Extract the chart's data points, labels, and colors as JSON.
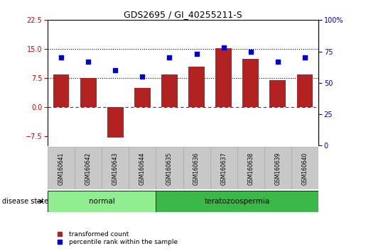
{
  "title": "GDS2695 / GI_40255211-S",
  "samples": [
    "GSM160641",
    "GSM160642",
    "GSM160643",
    "GSM160644",
    "GSM160635",
    "GSM160636",
    "GSM160637",
    "GSM160638",
    "GSM160639",
    "GSM160640"
  ],
  "bar_values": [
    8.5,
    7.5,
    -8.0,
    5.0,
    8.5,
    10.5,
    15.2,
    12.5,
    7.0,
    8.5
  ],
  "dot_values": [
    70,
    67,
    60,
    55,
    70,
    73,
    78,
    75,
    67,
    70
  ],
  "bar_color": "#B22222",
  "dot_color": "#0000CC",
  "ylim_left": [
    -10,
    22.5
  ],
  "ylim_right": [
    0,
    100
  ],
  "yticks_left": [
    -7.5,
    0,
    7.5,
    15,
    22.5
  ],
  "yticks_right": [
    0,
    25,
    50,
    75,
    100
  ],
  "ytick_labels_right": [
    "0",
    "25",
    "50",
    "75",
    "100%"
  ],
  "disease_groups": [
    {
      "label": "normal",
      "start": 0,
      "end": 4,
      "color": "#90EE90"
    },
    {
      "label": "teratozoospermia",
      "start": 4,
      "end": 10,
      "color": "#3CB84A"
    }
  ],
  "disease_state_label": "disease state",
  "legend_bar_label": "transformed count",
  "legend_dot_label": "percentile rank within the sample",
  "bg_color": "#FFFFFF",
  "tick_label_color_left": "#CC0000",
  "tick_label_color_right": "#0000CC",
  "zero_line_color": "#CC0000",
  "sample_box_color": "#C8C8C8",
  "sample_box_edge_color": "#AAAAAA",
  "border_color": "#000000"
}
